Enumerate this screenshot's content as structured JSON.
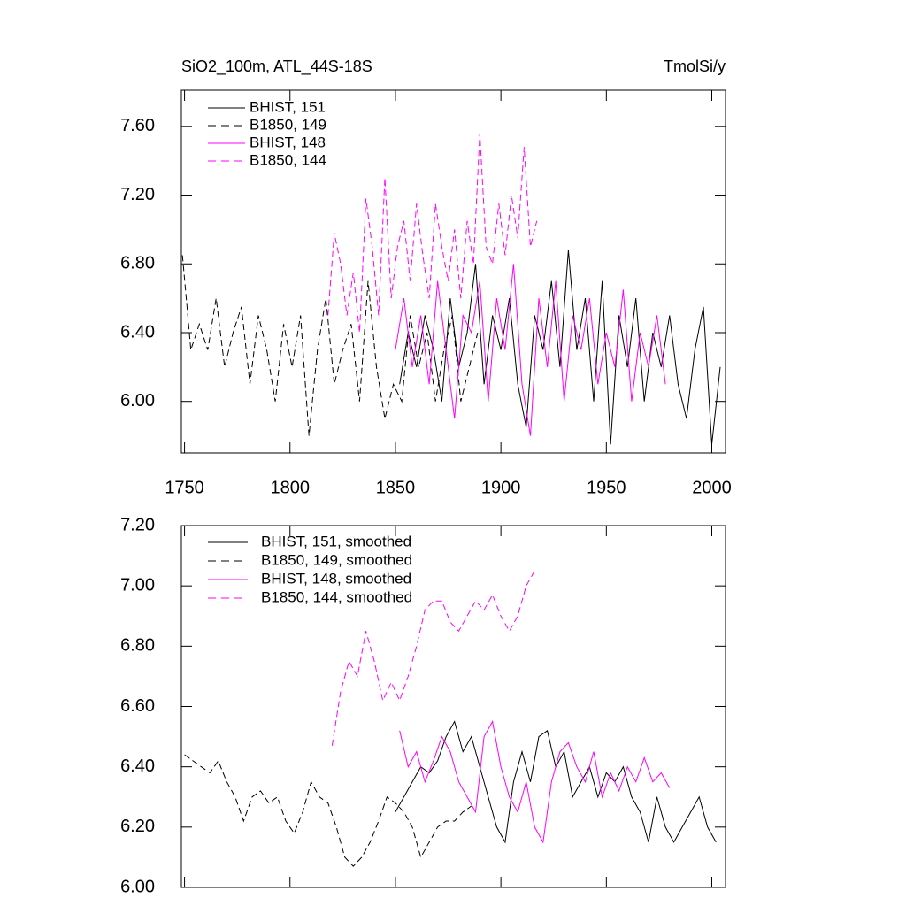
{
  "chart_data": [
    {
      "type": "line",
      "title": "SiO2_100m, ATL_44S-18S",
      "units": "TmolSi/y",
      "xlim": [
        1748.5,
        2006.5
      ],
      "xticks": [
        1750,
        1800,
        1850,
        1900,
        1950,
        2000
      ],
      "xtick_labels": true,
      "ylim": [
        5.7,
        7.81
      ],
      "yticks": [
        {
          "value": 6,
          "label": "6.00"
        },
        {
          "value": 6.4,
          "label": "6.40"
        },
        {
          "value": 6.8,
          "label": "6.80"
        },
        {
          "value": 7.2,
          "label": "7.20"
        },
        {
          "value": 7.6,
          "label": "7.60"
        }
      ],
      "series": [
        {
          "name": "BHIST, 151",
          "color": "#000000",
          "dashed": false,
          "x": [
            1852,
            1856,
            1860,
            1864,
            1868,
            1872,
            1876,
            1880,
            1884,
            1888,
            1892,
            1896,
            1900,
            1904,
            1908,
            1912,
            1916,
            1920,
            1924,
            1928,
            1932,
            1936,
            1940,
            1944,
            1948,
            1952,
            1956,
            1960,
            1964,
            1968,
            1972,
            1976,
            1980,
            1984,
            1988,
            1992,
            1996,
            2000,
            2004
          ],
          "values": [
            6.1,
            6.4,
            6.2,
            6.5,
            6.3,
            6.0,
            6.6,
            6.2,
            6.4,
            6.8,
            6.1,
            6.5,
            6.3,
            6.6,
            6.1,
            5.85,
            6.5,
            6.3,
            6.7,
            6.2,
            6.88,
            6.3,
            6.6,
            6.0,
            6.7,
            5.75,
            6.5,
            6.2,
            6.6,
            6.0,
            6.4,
            6.2,
            6.5,
            6.1,
            5.9,
            6.3,
            6.55,
            5.75,
            6.2
          ]
        },
        {
          "name": "B1850, 149",
          "color": "#000000",
          "dashed": true,
          "x": [
            1749,
            1753,
            1757,
            1761,
            1765,
            1769,
            1773,
            1777,
            1781,
            1785,
            1789,
            1793,
            1797,
            1801,
            1805,
            1809,
            1813,
            1817,
            1821,
            1825,
            1829,
            1833,
            1837,
            1841,
            1845,
            1849,
            1853,
            1857,
            1861,
            1865,
            1869,
            1873,
            1877,
            1881,
            1885,
            1889
          ],
          "values": [
            6.85,
            6.3,
            6.45,
            6.3,
            6.6,
            6.2,
            6.4,
            6.55,
            6.1,
            6.5,
            6.3,
            6.0,
            6.45,
            6.2,
            6.5,
            5.8,
            6.3,
            6.6,
            6.1,
            6.3,
            6.45,
            6.0,
            6.7,
            6.2,
            5.9,
            6.1,
            6.0,
            6.5,
            6.2,
            6.4,
            6.0,
            6.3,
            6.5,
            6.0,
            6.2,
            6.4
          ]
        },
        {
          "name": "BHIST, 148",
          "color": "#ff00ff",
          "dashed": false,
          "x": [
            1850,
            1854,
            1858,
            1862,
            1866,
            1870,
            1874,
            1878,
            1882,
            1886,
            1890,
            1894,
            1898,
            1902,
            1906,
            1910,
            1914,
            1918,
            1922,
            1926,
            1930,
            1934,
            1938,
            1942,
            1946,
            1950,
            1954,
            1958,
            1962,
            1966,
            1970,
            1974,
            1978
          ],
          "values": [
            6.3,
            6.6,
            6.2,
            6.5,
            6.1,
            6.7,
            6.3,
            5.9,
            6.5,
            6.4,
            6.7,
            6.0,
            6.6,
            6.3,
            6.8,
            6.1,
            5.8,
            6.6,
            6.2,
            6.7,
            6.0,
            6.5,
            6.3,
            6.6,
            6.1,
            6.4,
            6.2,
            6.65,
            6.0,
            6.4,
            6.2,
            6.5,
            6.1
          ]
        },
        {
          "name": "B1850, 144",
          "color": "#ff00ff",
          "dashed": true,
          "x": [
            1818,
            1821,
            1824,
            1827,
            1830,
            1833,
            1836,
            1839,
            1842,
            1845,
            1848,
            1851,
            1854,
            1857,
            1860,
            1863,
            1866,
            1869,
            1872,
            1875,
            1878,
            1881,
            1884,
            1887,
            1890,
            1893,
            1896,
            1899,
            1902,
            1905,
            1908,
            1911,
            1914,
            1917
          ],
          "values": [
            6.5,
            6.98,
            6.8,
            6.5,
            6.75,
            6.4,
            7.18,
            6.9,
            6.5,
            7.3,
            6.6,
            6.9,
            7.05,
            6.7,
            7.15,
            6.85,
            6.6,
            7.15,
            6.9,
            6.7,
            7.0,
            6.6,
            7.05,
            6.8,
            7.56,
            6.9,
            6.8,
            7.15,
            6.85,
            7.2,
            6.95,
            7.48,
            6.9,
            7.05
          ]
        }
      ]
    },
    {
      "type": "line",
      "xlim": [
        1748.5,
        2006.5
      ],
      "xticks": [
        1750,
        1800,
        1850,
        1900,
        1950,
        2000
      ],
      "xtick_labels": false,
      "ylim": [
        6.0,
        7.2
      ],
      "yticks": [
        {
          "value": 6,
          "label": "6.00"
        },
        {
          "value": 6.2,
          "label": "6.20"
        },
        {
          "value": 6.4,
          "label": "6.40"
        },
        {
          "value": 6.6,
          "label": "6.60"
        },
        {
          "value": 6.8,
          "label": "6.80"
        },
        {
          "value": 7,
          "label": "7.00"
        },
        {
          "value": 7.2,
          "label": "7.20"
        }
      ],
      "series": [
        {
          "name": "BHIST, 151, smoothed",
          "color": "#000000",
          "dashed": false,
          "x": [
            1850,
            1854,
            1858,
            1862,
            1866,
            1870,
            1874,
            1878,
            1882,
            1886,
            1890,
            1894,
            1898,
            1902,
            1906,
            1910,
            1914,
            1918,
            1922,
            1926,
            1930,
            1934,
            1938,
            1942,
            1946,
            1950,
            1954,
            1958,
            1962,
            1966,
            1970,
            1974,
            1978,
            1982,
            1986,
            1990,
            1994,
            1998,
            2002
          ],
          "values": [
            6.25,
            6.3,
            6.35,
            6.4,
            6.38,
            6.42,
            6.5,
            6.55,
            6.45,
            6.5,
            6.4,
            6.3,
            6.2,
            6.15,
            6.35,
            6.45,
            6.35,
            6.5,
            6.52,
            6.4,
            6.45,
            6.3,
            6.35,
            6.4,
            6.3,
            6.38,
            6.35,
            6.4,
            6.3,
            6.25,
            6.15,
            6.3,
            6.2,
            6.15,
            6.2,
            6.25,
            6.3,
            6.2,
            6.15
          ]
        },
        {
          "name": "B1850, 149, smoothed",
          "color": "#000000",
          "dashed": true,
          "x": [
            1750,
            1754,
            1758,
            1762,
            1766,
            1770,
            1774,
            1778,
            1782,
            1786,
            1790,
            1794,
            1798,
            1802,
            1806,
            1810,
            1814,
            1818,
            1822,
            1826,
            1830,
            1834,
            1838,
            1842,
            1846,
            1850,
            1854,
            1858,
            1862,
            1866,
            1870,
            1874,
            1878,
            1882,
            1886
          ],
          "values": [
            6.44,
            6.42,
            6.4,
            6.38,
            6.42,
            6.35,
            6.3,
            6.22,
            6.3,
            6.32,
            6.28,
            6.3,
            6.22,
            6.18,
            6.25,
            6.35,
            6.3,
            6.28,
            6.2,
            6.1,
            6.07,
            6.1,
            6.15,
            6.22,
            6.3,
            6.28,
            6.25,
            6.2,
            6.1,
            6.15,
            6.2,
            6.22,
            6.22,
            6.25,
            6.27
          ]
        },
        {
          "name": "BHIST, 148, smoothed",
          "color": "#ff00ff",
          "dashed": false,
          "x": [
            1852,
            1856,
            1860,
            1864,
            1868,
            1872,
            1876,
            1880,
            1884,
            1888,
            1892,
            1896,
            1900,
            1904,
            1908,
            1912,
            1916,
            1920,
            1924,
            1928,
            1932,
            1936,
            1940,
            1944,
            1948,
            1952,
            1956,
            1960,
            1964,
            1968,
            1972,
            1976,
            1980
          ],
          "values": [
            6.52,
            6.4,
            6.45,
            6.35,
            6.42,
            6.5,
            6.45,
            6.35,
            6.3,
            6.25,
            6.5,
            6.55,
            6.4,
            6.3,
            6.25,
            6.35,
            6.2,
            6.15,
            6.35,
            6.45,
            6.48,
            6.4,
            6.35,
            6.45,
            6.3,
            6.38,
            6.32,
            6.4,
            6.35,
            6.43,
            6.35,
            6.38,
            6.33
          ]
        },
        {
          "name": "B1850, 144, smoothed",
          "color": "#ff00ff",
          "dashed": true,
          "x": [
            1820,
            1824,
            1828,
            1832,
            1836,
            1840,
            1844,
            1848,
            1852,
            1856,
            1860,
            1864,
            1868,
            1872,
            1876,
            1880,
            1884,
            1888,
            1892,
            1896,
            1900,
            1904,
            1908,
            1912,
            1916
          ],
          "values": [
            6.47,
            6.65,
            6.75,
            6.7,
            6.85,
            6.75,
            6.62,
            6.68,
            6.62,
            6.7,
            6.8,
            6.92,
            6.95,
            6.95,
            6.88,
            6.85,
            6.9,
            6.95,
            6.92,
            6.97,
            6.9,
            6.85,
            6.9,
            7.0,
            7.05
          ]
        }
      ]
    }
  ]
}
